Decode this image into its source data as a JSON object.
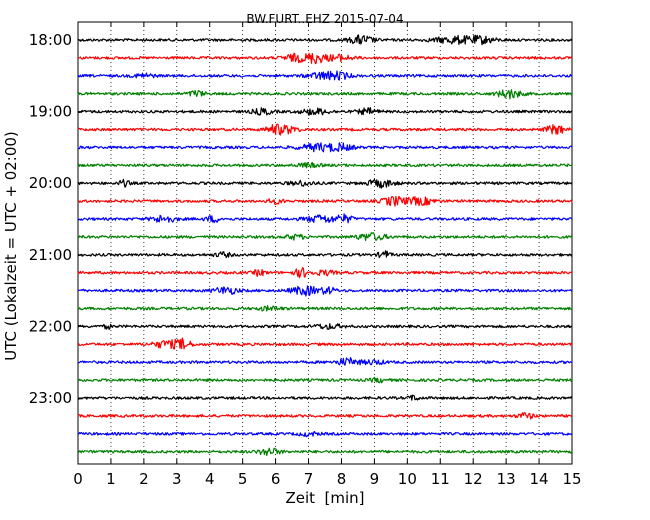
{
  "chart_data": {
    "type": "line",
    "title": "BW.FURT..EHZ 2015-07-04",
    "xlabel": "Zeit  [min]",
    "ylabel": "UTC (Lokalzeit = UTC + 02:00)",
    "xlim": [
      0,
      15
    ],
    "x_ticks": [
      "0",
      "1",
      "2",
      "3",
      "4",
      "5",
      "6",
      "7",
      "8",
      "9",
      "10",
      "11",
      "12",
      "13",
      "14",
      "15"
    ],
    "y_ticks": [
      "18:00",
      "19:00",
      "20:00",
      "21:00",
      "22:00",
      "23:00"
    ],
    "line_interval_minutes": 15,
    "grid": "vertical dotted",
    "colors": [
      "#000000",
      "#ff0000",
      "#0000ff",
      "#008000"
    ],
    "series": [
      {
        "start": "18:00",
        "bursts": [
          [
            8.6,
            0.5,
            0.6
          ],
          [
            11.5,
            1.0,
            0.5
          ],
          [
            12.3,
            0.5,
            0.4
          ]
        ]
      },
      {
        "start": "18:15",
        "bursts": [
          [
            6.6,
            0.5,
            0.5
          ],
          [
            7.2,
            0.4,
            0.7
          ],
          [
            7.9,
            0.6,
            0.4
          ]
        ]
      },
      {
        "start": "18:30",
        "bursts": [
          [
            2.0,
            0.4,
            0.3
          ],
          [
            7.5,
            0.7,
            0.5
          ],
          [
            8.0,
            0.4,
            0.3
          ]
        ]
      },
      {
        "start": "18:45",
        "bursts": [
          [
            3.6,
            0.3,
            0.4
          ],
          [
            13.1,
            0.5,
            0.6
          ]
        ]
      },
      {
        "start": "19:00",
        "bursts": [
          [
            5.6,
            0.4,
            0.4
          ],
          [
            7.2,
            0.6,
            0.4
          ],
          [
            8.8,
            0.4,
            0.4
          ]
        ]
      },
      {
        "start": "19:15",
        "bursts": [
          [
            6.0,
            0.4,
            0.6
          ],
          [
            6.4,
            0.4,
            0.4
          ],
          [
            14.5,
            0.4,
            0.6
          ]
        ]
      },
      {
        "start": "19:30",
        "bursts": [
          [
            7.3,
            0.8,
            0.5
          ],
          [
            8.0,
            0.5,
            0.4
          ]
        ]
      },
      {
        "start": "19:45",
        "bursts": [
          [
            7.0,
            0.5,
            0.25
          ]
        ]
      },
      {
        "start": "20:00",
        "bursts": [
          [
            1.4,
            0.2,
            0.4
          ],
          [
            6.8,
            0.5,
            0.3
          ],
          [
            9.2,
            0.6,
            0.5
          ]
        ]
      },
      {
        "start": "20:15",
        "bursts": [
          [
            6.0,
            0.3,
            0.3
          ],
          [
            9.6,
            0.5,
            0.6
          ],
          [
            10.4,
            0.6,
            0.5
          ]
        ]
      },
      {
        "start": "20:30",
        "bursts": [
          [
            2.6,
            0.5,
            0.5
          ],
          [
            4.1,
            0.3,
            0.4
          ],
          [
            7.4,
            0.7,
            0.5
          ],
          [
            8.1,
            0.3,
            0.5
          ]
        ]
      },
      {
        "start": "20:45",
        "bursts": [
          [
            6.6,
            0.4,
            0.3
          ],
          [
            8.9,
            0.6,
            0.5
          ]
        ]
      },
      {
        "start": "21:00",
        "bursts": [
          [
            4.4,
            0.3,
            0.3
          ],
          [
            9.3,
            0.2,
            0.5
          ]
        ]
      },
      {
        "start": "21:15",
        "bursts": [
          [
            5.5,
            0.2,
            0.4
          ],
          [
            6.8,
            0.3,
            0.6
          ],
          [
            7.5,
            0.4,
            0.3
          ]
        ]
      },
      {
        "start": "21:30",
        "bursts": [
          [
            4.5,
            0.5,
            0.5
          ],
          [
            6.9,
            0.6,
            0.6
          ],
          [
            7.6,
            0.3,
            0.4
          ]
        ]
      },
      {
        "start": "21:45",
        "bursts": [
          [
            5.8,
            0.5,
            0.25
          ]
        ]
      },
      {
        "start": "22:00",
        "bursts": [
          [
            0.9,
            0.1,
            0.3
          ],
          [
            7.6,
            0.6,
            0.3
          ]
        ]
      },
      {
        "start": "22:15",
        "bursts": [
          [
            2.7,
            0.6,
            0.5
          ],
          [
            3.2,
            0.3,
            0.6
          ]
        ]
      },
      {
        "start": "22:30",
        "bursts": [
          [
            8.2,
            0.5,
            0.5
          ],
          [
            9.0,
            0.4,
            0.3
          ]
        ]
      },
      {
        "start": "22:45",
        "bursts": [
          [
            9.1,
            0.3,
            0.25
          ]
        ]
      },
      {
        "start": "23:00",
        "bursts": [
          [
            10.2,
            0.2,
            0.3
          ]
        ]
      },
      {
        "start": "23:15",
        "bursts": [
          [
            13.6,
            0.3,
            0.4
          ]
        ]
      },
      {
        "start": "23:30",
        "bursts": [
          [
            7.0,
            0.4,
            0.25
          ]
        ]
      },
      {
        "start": "23:45",
        "bursts": [
          [
            5.8,
            0.4,
            0.5
          ]
        ]
      }
    ]
  }
}
